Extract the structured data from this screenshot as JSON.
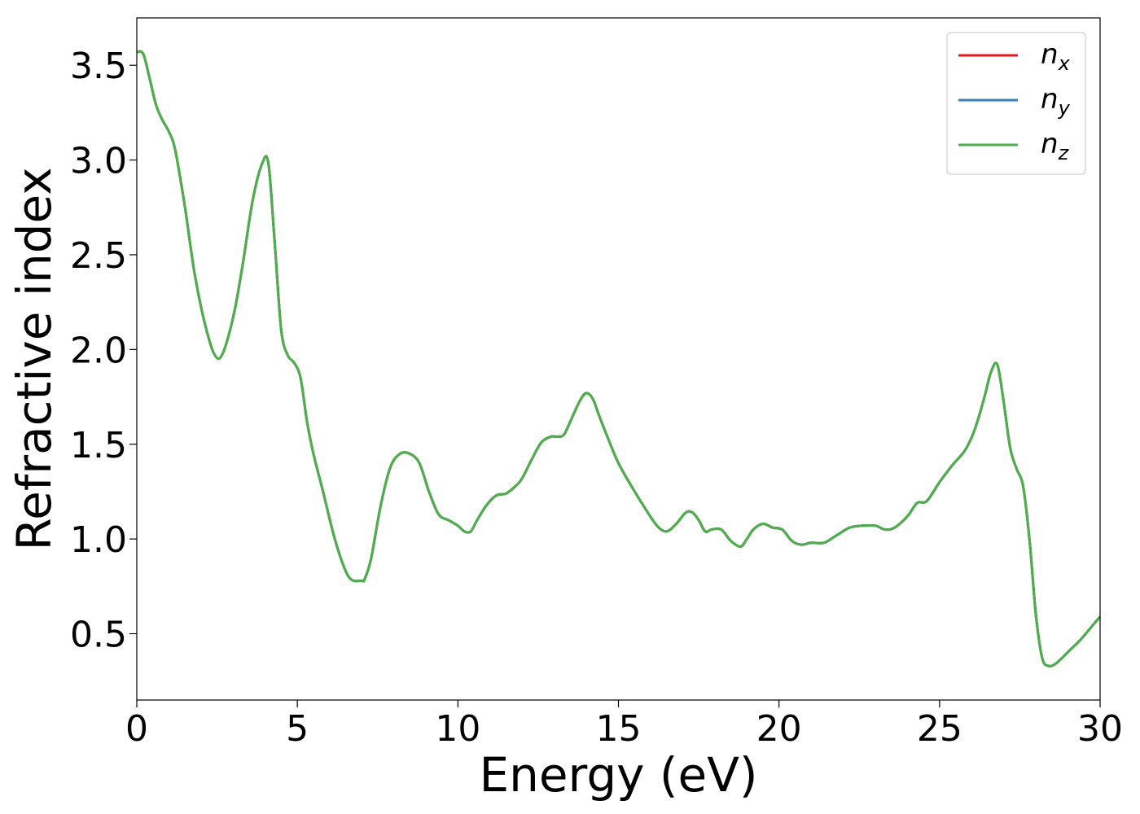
{
  "chart_data": {
    "type": "line",
    "xlabel": "Energy (eV)",
    "ylabel": "Refractive index",
    "xlim": [
      0,
      30
    ],
    "ylim": [
      0.15,
      3.75
    ],
    "xticks": [
      0,
      5,
      10,
      15,
      20,
      25,
      30
    ],
    "xtick_labels": [
      "0",
      "5",
      "10",
      "15",
      "20",
      "25",
      "30"
    ],
    "yticks": [
      0.5,
      1.0,
      1.5,
      2.0,
      2.5,
      3.0,
      3.5
    ],
    "ytick_labels": [
      "0.5",
      "1.0",
      "1.5",
      "2.0",
      "2.5",
      "3.0",
      "3.5"
    ],
    "grid": false,
    "legend_position": "top-right",
    "x": [
      0,
      0.2,
      0.4,
      0.6,
      0.8,
      1.0,
      1.2,
      1.5,
      1.8,
      2.1,
      2.4,
      2.65,
      3.0,
      3.3,
      3.6,
      3.9,
      4.1,
      4.3,
      4.5,
      4.7,
      4.9,
      5.1,
      5.3,
      5.5,
      5.8,
      6.2,
      6.6,
      7.0,
      7.1,
      7.3,
      7.6,
      7.9,
      8.2,
      8.5,
      8.8,
      9.1,
      9.4,
      9.7,
      10.0,
      10.2,
      10.4,
      10.6,
      10.9,
      11.2,
      11.5,
      11.8,
      12.0,
      12.3,
      12.6,
      12.9,
      13.1,
      13.3,
      13.5,
      13.8,
      14.0,
      14.2,
      14.4,
      14.7,
      15.0,
      15.4,
      15.8,
      16.2,
      16.5,
      16.8,
      17.1,
      17.3,
      17.5,
      17.7,
      17.9,
      18.2,
      18.5,
      18.8,
      19.0,
      19.2,
      19.5,
      19.8,
      20.1,
      20.4,
      20.7,
      21.0,
      21.4,
      21.8,
      22.2,
      22.6,
      23.0,
      23.3,
      23.6,
      24.0,
      24.3,
      24.6,
      25.0,
      25.4,
      25.8,
      26.1,
      26.4,
      26.6,
      26.8,
      27.0,
      27.2,
      27.4,
      27.6,
      27.8,
      28.0,
      28.2,
      28.4,
      28.6,
      28.8,
      29.1,
      29.4,
      29.7,
      30.0
    ],
    "series": [
      {
        "name": "n_x",
        "label_base": "n",
        "label_sub": "x",
        "color": "#e41a1c",
        "y": [
          3.57,
          3.56,
          3.43,
          3.29,
          3.21,
          3.15,
          3.05,
          2.75,
          2.4,
          2.15,
          1.98,
          1.97,
          2.17,
          2.45,
          2.78,
          2.98,
          2.98,
          2.55,
          2.1,
          1.97,
          1.93,
          1.85,
          1.62,
          1.45,
          1.25,
          0.98,
          0.8,
          0.78,
          0.79,
          0.9,
          1.18,
          1.38,
          1.45,
          1.45,
          1.4,
          1.25,
          1.13,
          1.1,
          1.07,
          1.04,
          1.04,
          1.1,
          1.18,
          1.23,
          1.24,
          1.28,
          1.32,
          1.42,
          1.51,
          1.54,
          1.54,
          1.55,
          1.62,
          1.73,
          1.77,
          1.74,
          1.65,
          1.52,
          1.4,
          1.28,
          1.17,
          1.07,
          1.04,
          1.08,
          1.14,
          1.14,
          1.1,
          1.04,
          1.05,
          1.05,
          0.99,
          0.96,
          1.0,
          1.05,
          1.08,
          1.06,
          1.05,
          0.99,
          0.97,
          0.98,
          0.98,
          1.02,
          1.06,
          1.07,
          1.07,
          1.05,
          1.06,
          1.12,
          1.19,
          1.2,
          1.3,
          1.39,
          1.47,
          1.58,
          1.75,
          1.88,
          1.92,
          1.72,
          1.48,
          1.37,
          1.28,
          1.0,
          0.6,
          0.37,
          0.33,
          0.34,
          0.37,
          0.42,
          0.47,
          0.53,
          0.59
        ]
      },
      {
        "name": "n_y",
        "label_base": "n",
        "label_sub": "y",
        "color": "#377eb8",
        "y": [
          3.57,
          3.56,
          3.43,
          3.29,
          3.21,
          3.15,
          3.05,
          2.75,
          2.4,
          2.15,
          1.98,
          1.97,
          2.17,
          2.45,
          2.78,
          2.98,
          2.98,
          2.55,
          2.1,
          1.97,
          1.93,
          1.85,
          1.62,
          1.45,
          1.25,
          0.98,
          0.8,
          0.78,
          0.79,
          0.9,
          1.18,
          1.38,
          1.45,
          1.45,
          1.4,
          1.25,
          1.13,
          1.1,
          1.07,
          1.04,
          1.04,
          1.1,
          1.18,
          1.23,
          1.24,
          1.28,
          1.32,
          1.42,
          1.51,
          1.54,
          1.54,
          1.55,
          1.62,
          1.73,
          1.77,
          1.74,
          1.65,
          1.52,
          1.4,
          1.28,
          1.17,
          1.07,
          1.04,
          1.08,
          1.14,
          1.14,
          1.1,
          1.04,
          1.05,
          1.05,
          0.99,
          0.96,
          1.0,
          1.05,
          1.08,
          1.06,
          1.05,
          0.99,
          0.97,
          0.98,
          0.98,
          1.02,
          1.06,
          1.07,
          1.07,
          1.05,
          1.06,
          1.12,
          1.19,
          1.2,
          1.3,
          1.39,
          1.47,
          1.58,
          1.75,
          1.88,
          1.92,
          1.72,
          1.48,
          1.37,
          1.28,
          1.0,
          0.6,
          0.37,
          0.33,
          0.34,
          0.37,
          0.42,
          0.47,
          0.53,
          0.59
        ]
      },
      {
        "name": "n_z",
        "label_base": "n",
        "label_sub": "z",
        "color": "#4daf4a",
        "y": [
          3.57,
          3.56,
          3.43,
          3.29,
          3.21,
          3.15,
          3.05,
          2.75,
          2.4,
          2.15,
          1.98,
          1.97,
          2.17,
          2.45,
          2.78,
          2.98,
          2.98,
          2.55,
          2.1,
          1.97,
          1.93,
          1.85,
          1.62,
          1.45,
          1.25,
          0.98,
          0.8,
          0.78,
          0.79,
          0.9,
          1.18,
          1.38,
          1.45,
          1.45,
          1.4,
          1.25,
          1.13,
          1.1,
          1.07,
          1.04,
          1.04,
          1.1,
          1.18,
          1.23,
          1.24,
          1.28,
          1.32,
          1.42,
          1.51,
          1.54,
          1.54,
          1.55,
          1.62,
          1.73,
          1.77,
          1.74,
          1.65,
          1.52,
          1.4,
          1.28,
          1.17,
          1.07,
          1.04,
          1.08,
          1.14,
          1.14,
          1.1,
          1.04,
          1.05,
          1.05,
          0.99,
          0.96,
          1.0,
          1.05,
          1.08,
          1.06,
          1.05,
          0.99,
          0.97,
          0.98,
          0.98,
          1.02,
          1.06,
          1.07,
          1.07,
          1.05,
          1.06,
          1.12,
          1.19,
          1.2,
          1.3,
          1.39,
          1.47,
          1.58,
          1.75,
          1.88,
          1.92,
          1.72,
          1.48,
          1.37,
          1.28,
          1.0,
          0.6,
          0.37,
          0.33,
          0.34,
          0.37,
          0.42,
          0.47,
          0.53,
          0.59
        ]
      }
    ]
  }
}
